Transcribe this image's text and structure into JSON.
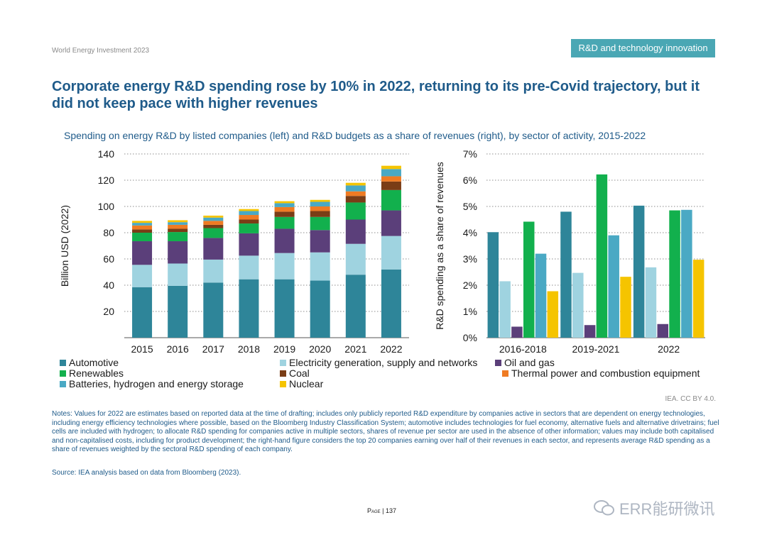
{
  "header": {
    "report_name": "World Energy Investment 2023",
    "section_tag": "R&D and technology innovation"
  },
  "headline": "Corporate energy R&D spending rose by 10% in 2022, returning to its pre-Covid trajectory, but it did not keep pace with higher revenues",
  "subtitle": "Spending on energy R&D by listed companies (left) and R&D budgets as a share of revenues (right), by sector of activity, 2015-2022",
  "colors": {
    "Automotive": "#2e8599",
    "Electricity generation, supply and networks": "#9fd3e0",
    "Oil and gas": "#5b3f7a",
    "Renewables": "#12b04d",
    "Coal": "#7a3d16",
    "Thermal power and combustion equipment": "#ef7b23",
    "Batteries, hydrogen and energy storage": "#4aa9c4",
    "Nuclear": "#f5c400",
    "grid": "#8c8c8c",
    "brand": "#1f5b8a",
    "tag": "#4aa7b4"
  },
  "chart_data": [
    {
      "type": "bar",
      "stacked": true,
      "ylabel": "Billion USD (2022)",
      "ylim": [
        0,
        140
      ],
      "yticks": [
        "",
        "20",
        "40",
        "60",
        "80",
        "100",
        "120",
        "140"
      ],
      "categories": [
        "2015",
        "2016",
        "2017",
        "2018",
        "2019",
        "2020",
        "2021",
        "2022"
      ],
      "grid": true,
      "series": [
        {
          "name": "Automotive",
          "values": [
            38.5,
            39.5,
            42,
            44.5,
            44.5,
            43.5,
            48,
            52
          ]
        },
        {
          "name": "Electricity generation, supply and networks",
          "values": [
            17,
            17,
            17.5,
            18,
            20,
            21.5,
            23.5,
            25.5
          ]
        },
        {
          "name": "Oil and gas",
          "values": [
            18,
            17,
            16.5,
            17,
            18.5,
            17,
            18.5,
            19.5
          ]
        },
        {
          "name": "Renewables",
          "values": [
            6.5,
            7,
            7.5,
            7.5,
            9,
            10,
            13,
            15.5
          ]
        },
        {
          "name": "Coal",
          "values": [
            2.5,
            2.5,
            2.5,
            3,
            4,
            4.5,
            5,
            6.5
          ]
        },
        {
          "name": "Thermal power and combustion equipment",
          "values": [
            3,
            3,
            3,
            3.5,
            3.5,
            3.5,
            3.5,
            4
          ]
        },
        {
          "name": "Batteries, hydrogen and energy storage",
          "values": [
            2,
            2,
            2.5,
            3,
            3,
            3.5,
            4.5,
            5.5
          ]
        },
        {
          "name": "Nuclear",
          "values": [
            1.5,
            1.5,
            1.5,
            1.5,
            1.5,
            1.5,
            2,
            2.5
          ]
        }
      ]
    },
    {
      "type": "bar",
      "stacked": false,
      "ylabel": "R&D spending as a share of revenues",
      "ylim": [
        0,
        7
      ],
      "yticks": [
        "0%",
        "1%",
        "2%",
        "3%",
        "4%",
        "5%",
        "6%",
        "7%"
      ],
      "categories": [
        "2016-2018",
        "2019-2021",
        "2022"
      ],
      "grid": true,
      "series": [
        {
          "name": "Automotive",
          "values": [
            4.02,
            4.8,
            5.03
          ]
        },
        {
          "name": "Electricity generation, supply and networks",
          "values": [
            2.15,
            2.47,
            2.68
          ]
        },
        {
          "name": "Oil and gas",
          "values": [
            0.42,
            0.48,
            0.52
          ]
        },
        {
          "name": "Renewables",
          "values": [
            4.42,
            6.22,
            4.85
          ]
        },
        {
          "name": "Batteries, hydrogen and energy storage",
          "values": [
            3.2,
            3.9,
            4.87
          ]
        },
        {
          "name": "Nuclear",
          "values": [
            1.77,
            2.32,
            2.97
          ]
        }
      ]
    }
  ],
  "legend": [
    {
      "label": "Automotive",
      "col": 0,
      "row": 0
    },
    {
      "label": "Electricity generation, supply and networks",
      "col": 1,
      "row": 0
    },
    {
      "label": "Oil and gas",
      "col": 2,
      "row": 0
    },
    {
      "label": "Renewables",
      "col": 0,
      "row": 1
    },
    {
      "label": "Coal",
      "col": 1,
      "row": 1
    },
    {
      "label": "Thermal power and combustion equipment",
      "col": 2,
      "row": 1
    },
    {
      "label": "Batteries, hydrogen and energy storage",
      "col": 0,
      "row": 2
    },
    {
      "label": "Nuclear",
      "col": 1,
      "row": 2
    }
  ],
  "credit": "IEA. CC BY 4.0.",
  "notes": "Notes: Values for 2022 are estimates based on reported data at the time of drafting; includes only publicly reported R&D expenditure by companies active in sectors that are dependent on energy technologies, including energy efficiency technologies where possible, based on the Bloomberg Industry Classification System; automotive includes technologies for fuel economy, alternative fuels and alternative drivetrains; fuel cells are included with hydrogen; to allocate R&D spending for companies active in multiple sectors, shares of revenue per sector are used in the absence of other information; values may include both capitalised and non-capitalised costs, including for product development; the right-hand figure considers the top 20 companies earning over half of their revenues in each sector, and represents average R&D spending as a share of revenues weighted by the sectoral R&D spending of each company.",
  "source": "Source: IEA analysis based on data from Bloomberg (2023).",
  "page": "Page | 137",
  "watermark": "ERR能研微讯"
}
